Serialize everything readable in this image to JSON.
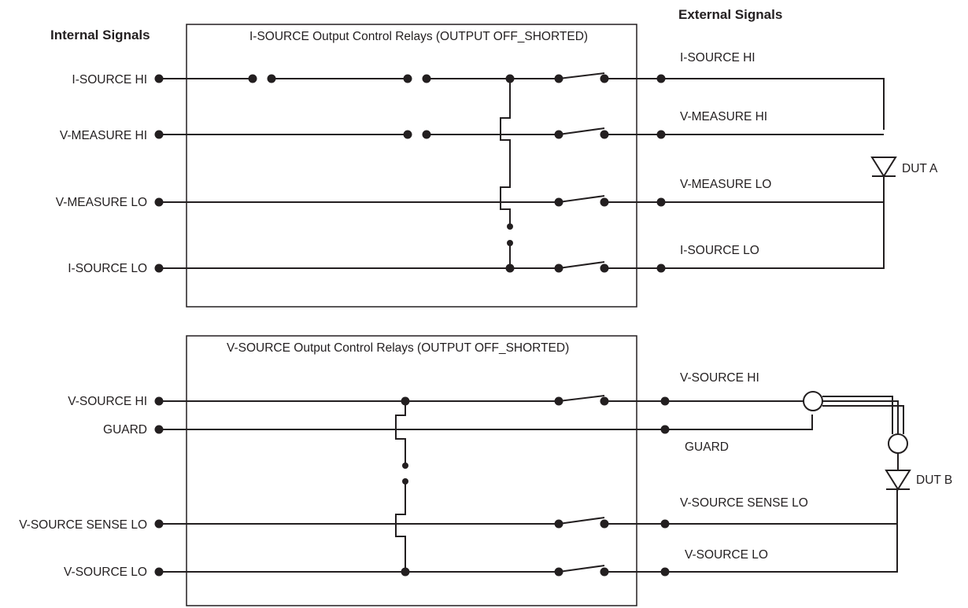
{
  "headers": {
    "internal": "Internal Signals",
    "external": "External Signals"
  },
  "top_block": {
    "title": "I-SOURCE Output Control Relays (OUTPUT OFF_SHORTED)",
    "internal_labels": [
      "I-SOURCE HI",
      "V-MEASURE HI",
      "V-MEASURE LO",
      "I-SOURCE LO"
    ],
    "external_labels": [
      "I-SOURCE HI",
      "V-MEASURE HI",
      "V-MEASURE LO",
      "I-SOURCE LO"
    ],
    "dut_label": "DUT A"
  },
  "bottom_block": {
    "title": "V-SOURCE Output Control Relays (OUTPUT OFF_SHORTED)",
    "internal_labels": [
      "V-SOURCE HI",
      "GUARD",
      "V-SOURCE SENSE LO",
      "V-SOURCE LO"
    ],
    "external_labels": [
      "V-SOURCE HI",
      "GUARD",
      "V-SOURCE SENSE LO",
      "V-SOURCE LO"
    ],
    "dut_label": "DUT B"
  }
}
